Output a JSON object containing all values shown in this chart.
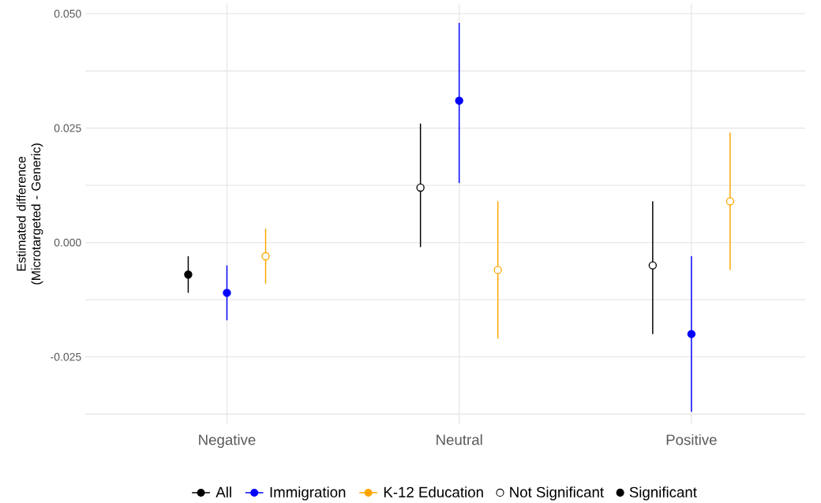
{
  "chart_data": {
    "type": "scatter",
    "ylabel": "Estimated difference (Microtargeted - Generic)",
    "categories": [
      "Negative",
      "Neutral",
      "Positive"
    ],
    "series": [
      {
        "name": "All",
        "color": "#000000",
        "values": [
          -0.007,
          0.012,
          -0.005
        ],
        "colors": [
          "#000000",
          "#ffffff",
          "#ffffff"
        ],
        "errors": [
          [
            -0.011,
            -0.003
          ],
          [
            -0.001,
            0.026
          ],
          [
            -0.02,
            0.009
          ]
        ]
      },
      {
        "name": "Immigration",
        "color": "#0000ff",
        "values": [
          -0.011,
          0.031,
          -0.02
        ],
        "colors": [
          "#0000ff",
          "#0000ff",
          "#0000ff"
        ],
        "errors": [
          [
            -0.017,
            -0.005
          ],
          [
            0.013,
            0.048
          ],
          [
            -0.037,
            -0.003
          ]
        ]
      },
      {
        "name": "K-12 Education",
        "color": "#ffa500",
        "values": [
          -0.003,
          -0.006,
          0.009
        ],
        "colors": [
          "#ffffff",
          "#ffffff",
          "#ffffff"
        ],
        "errors": [
          [
            -0.009,
            0.003
          ],
          [
            -0.021,
            0.009
          ],
          [
            -0.006,
            0.024
          ]
        ]
      },
      {
        "name": "Not Significant",
        "color": "#000000",
        "values": [
          null,
          null,
          null
        ],
        "colors": [
          "#ffffff",
          "#ffffff",
          "#ffffff"
        ]
      },
      {
        "name": "Significant",
        "color": "#000000",
        "values": [
          null,
          null,
          null
        ],
        "colors": [
          "#000000",
          "#000000",
          "#000000"
        ]
      }
    ],
    "ylim": [
      -0.0397,
      0.0522
    ],
    "yticks": [
      {
        "value": 0.05,
        "label": "0.050"
      },
      {
        "value": 0.0375,
        "label": null
      },
      0.025,
      {
        "value": 0.0125,
        "label": null
      },
      {
        "value": 0,
        "label": "0.000"
      },
      {
        "value": -0.0125,
        "label": null
      },
      -0.025,
      {
        "value": -0.0375,
        "label": null
      }
    ],
    "grid": true,
    "legend": "bottom",
    "marker": "circle"
  }
}
